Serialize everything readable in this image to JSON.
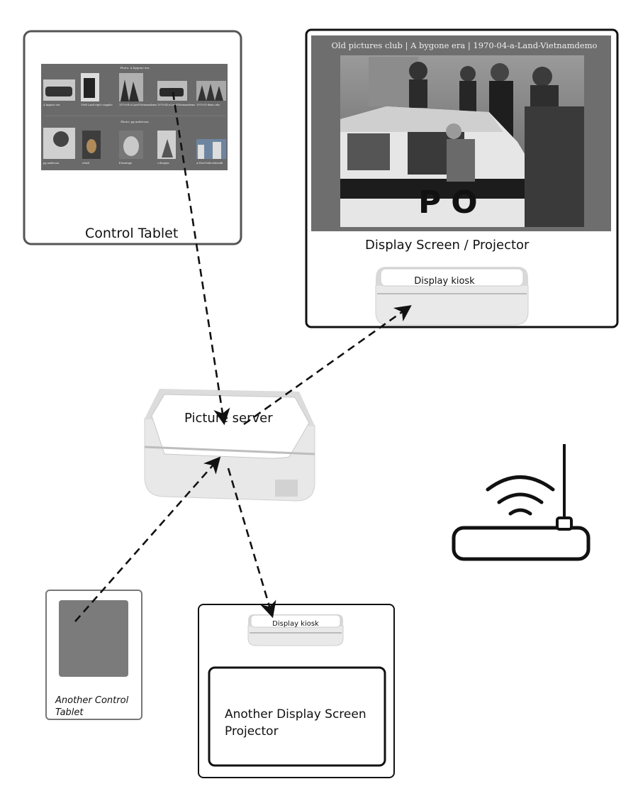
{
  "control_tablet": {
    "label": "Control Tablet",
    "gallery": {
      "section_1_title": "Photo: A bygone era",
      "section_1_captions": [
        "A bygone era",
        "1968 Land rigtt t angahe",
        "1970-04-a-Land-Vietnamdemo",
        "1970-04-a-Land-Vietnamdemo",
        "1970-01-demo rdn"
      ],
      "section_2_title": "Photo: pg anderson",
      "section_2_captions": [
        "pg anderson",
        "a-kalt",
        "b-kuntuge",
        "c-deegiss",
        "A-New-York-sidewalk"
      ]
    }
  },
  "display_screen": {
    "header": "Old pictures club  |  A bygone era  |  1970-04-a-Land-Vietnamdemo",
    "car_letters": "PO",
    "label": "Display Screen / Projector"
  },
  "display_kiosk_1": {
    "label": "Display kiosk"
  },
  "picture_server": {
    "label": "Picture server"
  },
  "another_tablet": {
    "label_line1": "Another Control",
    "label_line2": "Tablet"
  },
  "display_kiosk_2": {
    "label": "Display kiosk"
  },
  "another_display": {
    "label_line1": "Another Display Screen",
    "label_line2": "Projector"
  },
  "router": {
    "icon": "wifi-router-icon"
  }
}
